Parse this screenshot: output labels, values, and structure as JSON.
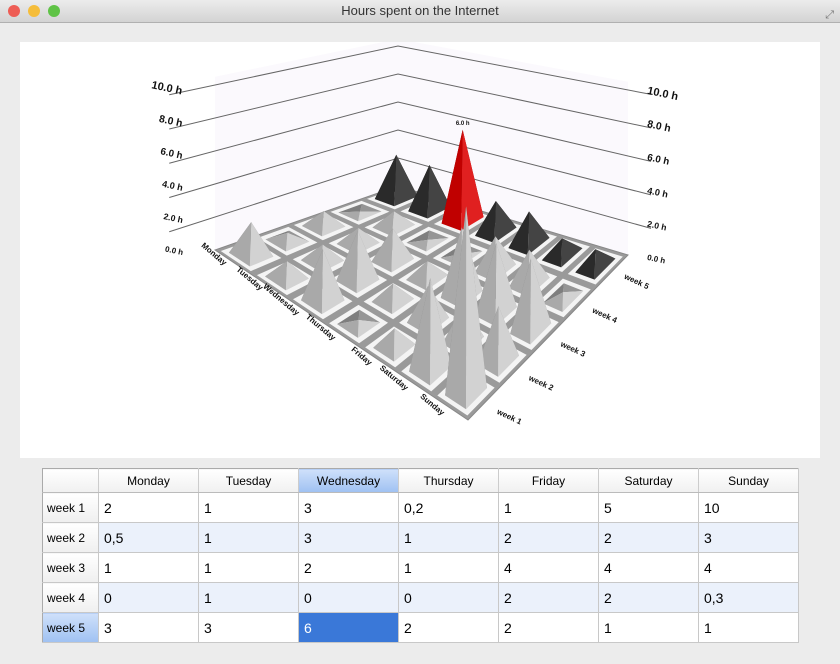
{
  "window": {
    "title": "Hours spent on the Internet"
  },
  "chart_data": {
    "type": "bar3d",
    "columns": [
      "Monday",
      "Tuesday",
      "Wednesday",
      "Thursday",
      "Friday",
      "Saturday",
      "Sunday"
    ],
    "rows": [
      "week 1",
      "week 2",
      "week 3",
      "week 4",
      "week 5"
    ],
    "values": [
      [
        2,
        1,
        3,
        0.2,
        1,
        5,
        10
      ],
      [
        0.5,
        1,
        3,
        1,
        2,
        2,
        3
      ],
      [
        1,
        1,
        2,
        1,
        4,
        4,
        4
      ],
      [
        0,
        1,
        0,
        0,
        2,
        2,
        0.3
      ],
      [
        3,
        3,
        6,
        2,
        2,
        1,
        1
      ]
    ],
    "value_ticks": [
      "0.0 h",
      "2.0 h",
      "4.0 h",
      "6.0 h",
      "8.0 h",
      "10.0 h"
    ],
    "ylim": [
      0,
      10
    ],
    "selected": {
      "row": 4,
      "column": 2,
      "label": "6.0 h"
    },
    "colors": {
      "bar": "#a8a8a8",
      "selected_bar": "#c00000",
      "selected_row": "#2a2a2a"
    }
  },
  "table": {
    "headers": [
      "Monday",
      "Tuesday",
      "Wednesday",
      "Thursday",
      "Friday",
      "Saturday",
      "Sunday"
    ],
    "rows": [
      {
        "label": "week 1",
        "cells": [
          "2",
          "1",
          "3",
          "0,2",
          "1",
          "5",
          "10"
        ]
      },
      {
        "label": "week 2",
        "cells": [
          "0,5",
          "1",
          "3",
          "1",
          "2",
          "2",
          "3"
        ]
      },
      {
        "label": "week 3",
        "cells": [
          "1",
          "1",
          "2",
          "1",
          "4",
          "4",
          "4"
        ]
      },
      {
        "label": "week 4",
        "cells": [
          "0",
          "1",
          "0",
          "0",
          "2",
          "2",
          "0,3"
        ]
      },
      {
        "label": "week 5",
        "cells": [
          "3",
          "3",
          "6",
          "2",
          "2",
          "1",
          "1"
        ]
      }
    ],
    "selected": {
      "row": 4,
      "column": 2
    }
  }
}
